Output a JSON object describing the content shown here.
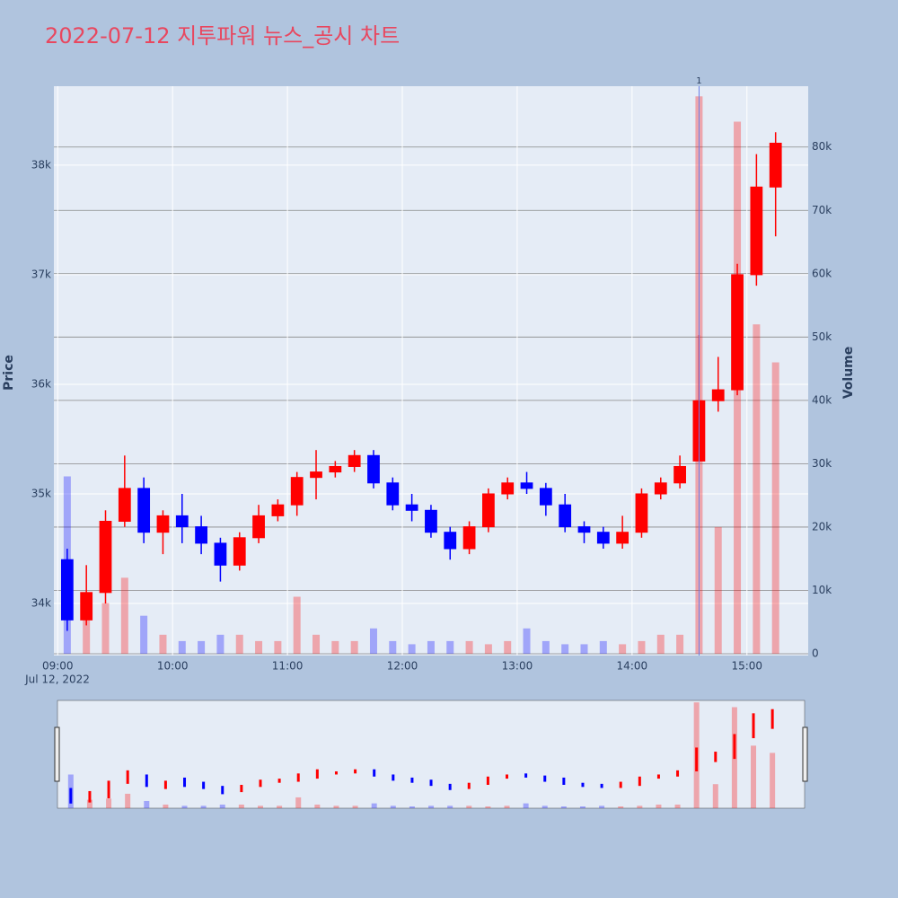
{
  "chart_data": {
    "type": "candlestick",
    "title": "2022-07-12 지투파워 뉴스_공시 차트",
    "ylabel": "Price",
    "y2label": "Volume",
    "date_label": "Jul 12, 2022",
    "increasing_color": "#ff0000",
    "decreasing_color": "#0000ff",
    "rangeslider": true,
    "x": [
      "09:00",
      "09:10",
      "09:20",
      "09:30",
      "09:40",
      "09:50",
      "10:00",
      "10:10",
      "10:20",
      "10:30",
      "10:40",
      "10:50",
      "11:00",
      "11:10",
      "11:20",
      "11:30",
      "11:40",
      "11:50",
      "12:00",
      "12:10",
      "12:20",
      "12:30",
      "12:40",
      "12:50",
      "13:00",
      "13:10",
      "13:20",
      "13:30",
      "13:40",
      "13:50",
      "14:00",
      "14:10",
      "14:20",
      "14:30",
      "14:40",
      "14:50",
      "15:00",
      "15:10"
    ],
    "open": [
      34400,
      33850,
      34100,
      34750,
      35050,
      34650,
      34800,
      34700,
      34550,
      34350,
      34600,
      34800,
      34900,
      35150,
      35200,
      35250,
      35350,
      35100,
      34900,
      34850,
      34650,
      34500,
      34700,
      35000,
      35100,
      35050,
      34900,
      34700,
      34650,
      34550,
      34650,
      35000,
      35100,
      35300,
      35850,
      35950,
      37000,
      37800
    ],
    "high": [
      34500,
      34350,
      34850,
      35350,
      35150,
      34850,
      35000,
      34800,
      34600,
      34650,
      34900,
      34950,
      35200,
      35400,
      35300,
      35400,
      35400,
      35150,
      35000,
      34900,
      34700,
      34750,
      35050,
      35150,
      35200,
      35100,
      35000,
      34750,
      34700,
      34800,
      35050,
      35150,
      35350,
      36450,
      36250,
      37100,
      38100,
      38300
    ],
    "low": [
      33750,
      33800,
      34000,
      34700,
      34550,
      34450,
      34550,
      34450,
      34200,
      34300,
      34550,
      34750,
      34800,
      34950,
      35150,
      35200,
      35050,
      34850,
      34750,
      34600,
      34400,
      34450,
      34650,
      34950,
      35000,
      34800,
      34650,
      34550,
      34500,
      34500,
      34600,
      34950,
      35050,
      35300,
      35750,
      35900,
      36900,
      37350
    ],
    "close": [
      33850,
      34100,
      34750,
      35050,
      34650,
      34800,
      34700,
      34550,
      34350,
      34600,
      34800,
      34900,
      35150,
      35200,
      35250,
      35350,
      35100,
      34900,
      34850,
      34650,
      34500,
      34700,
      35000,
      35100,
      35050,
      34900,
      34700,
      34650,
      34550,
      34650,
      35000,
      35100,
      35250,
      35850,
      35950,
      37000,
      37800,
      38200
    ],
    "volume": [
      28000,
      7000,
      8000,
      12000,
      6000,
      3000,
      2000,
      2000,
      3000,
      3000,
      2000,
      2000,
      9000,
      3000,
      2000,
      2000,
      4000,
      2000,
      1500,
      2000,
      2000,
      2000,
      1500,
      2000,
      4000,
      2000,
      1500,
      1500,
      2000,
      1500,
      2000,
      3000,
      3000,
      88000,
      20000,
      84000,
      52000,
      46000
    ],
    "xlim": [
      "08:58",
      "15:32"
    ],
    "xticks": [
      "09:00",
      "10:00",
      "11:00",
      "12:00",
      "13:00",
      "14:00",
      "15:00"
    ],
    "ylim": [
      33525,
      38720
    ],
    "yticks": [
      {
        "value": 34000,
        "label": "34k"
      },
      {
        "value": 35000,
        "label": "35k"
      },
      {
        "value": 36000,
        "label": "36k"
      },
      {
        "value": 37000,
        "label": "37k"
      },
      {
        "value": 38000,
        "label": "38k"
      }
    ],
    "y2lim": [
      0,
      89600
    ],
    "y2ticks": [
      0,
      {
        "value": 10000,
        "label": "10k"
      },
      {
        "value": 20000,
        "label": "20k"
      },
      {
        "value": 30000,
        "label": "30k"
      },
      {
        "value": 40000,
        "label": "40k"
      },
      {
        "value": 50000,
        "label": "50k"
      },
      {
        "value": 60000,
        "label": "60k"
      },
      {
        "value": 70000,
        "label": "70k"
      },
      {
        "value": 80000,
        "label": "80k"
      }
    ],
    "annotations": [
      {
        "x": "14:35",
        "text": "1"
      }
    ]
  }
}
